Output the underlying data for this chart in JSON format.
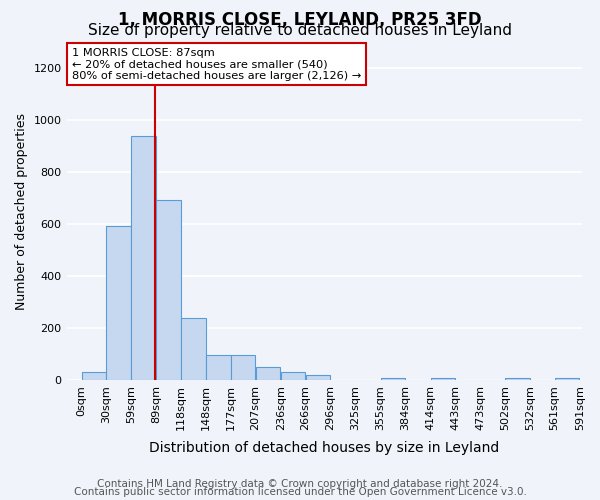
{
  "title": "1, MORRIS CLOSE, LEYLAND, PR25 3FD",
  "subtitle": "Size of property relative to detached houses in Leyland",
  "xlabel": "Distribution of detached houses by size in Leyland",
  "ylabel": "Number of detached properties",
  "footnote1": "Contains HM Land Registry data © Crown copyright and database right 2024.",
  "footnote2": "Contains public sector information licensed under the Open Government Licence v3.0.",
  "bar_color": "#c5d8f0",
  "bar_edge_color": "#5b9bd5",
  "vline_color": "#cc0000",
  "vline_x": 87,
  "annotation_text": "1 MORRIS CLOSE: 87sqm\n← 20% of detached houses are smaller (540)\n80% of semi-detached houses are larger (2,126) →",
  "annotation_box_color": "#ffffff",
  "annotation_box_edge": "#cc0000",
  "bin_edges": [
    0,
    29.5,
    58.5,
    88.5,
    118.5,
    147.5,
    177.5,
    206.5,
    236.5,
    265.5,
    295.5,
    325.5,
    354.5,
    384.5,
    414.5,
    443.5,
    473.5,
    502.5,
    532.5,
    561.5,
    591.5
  ],
  "bin_labels": [
    "0sqm",
    "30sqm",
    "59sqm",
    "89sqm",
    "118sqm",
    "148sqm",
    "177sqm",
    "207sqm",
    "236sqm",
    "266sqm",
    "296sqm",
    "325sqm",
    "355sqm",
    "384sqm",
    "414sqm",
    "443sqm",
    "473sqm",
    "502sqm",
    "532sqm",
    "561sqm",
    "591sqm"
  ],
  "bar_heights": [
    32,
    595,
    940,
    695,
    240,
    95,
    95,
    50,
    30,
    18,
    0,
    0,
    7,
    0,
    7,
    0,
    0,
    7,
    0,
    7
  ],
  "ylim": [
    0,
    1300
  ],
  "yticks": [
    0,
    200,
    400,
    600,
    800,
    1000,
    1200
  ],
  "background_color": "#f0f4fa",
  "plot_background": "#f0f4fa",
  "grid_color": "#ffffff",
  "title_fontsize": 12,
  "subtitle_fontsize": 11,
  "axis_label_fontsize": 9,
  "tick_fontsize": 8,
  "footnote_fontsize": 7.5
}
